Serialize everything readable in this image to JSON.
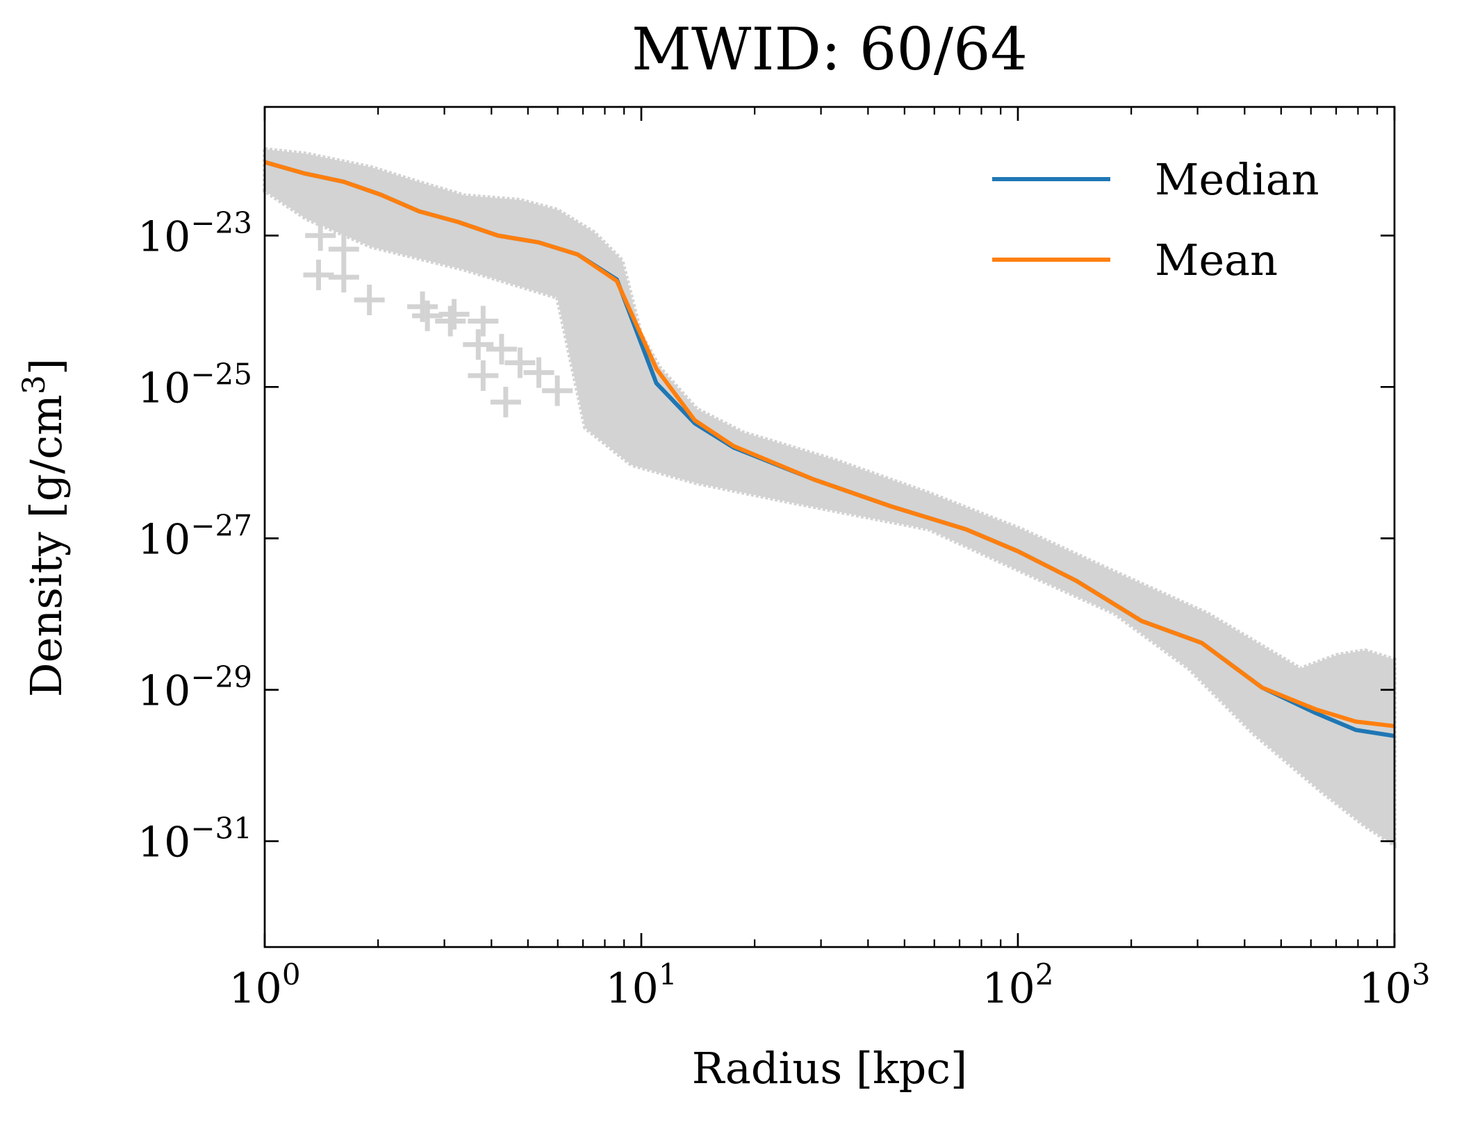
{
  "chart_data": {
    "type": "line",
    "title": "MWID: 60/64",
    "xlabel": "Radius [kpc]",
    "ylabel": "Density [g/cm^3]",
    "ylabel_parts": {
      "text": "Density [g/cm",
      "sup": "3",
      "close": "]"
    },
    "xscale": "log",
    "yscale": "log",
    "xlim": [
      1,
      1000
    ],
    "ylim": [
      4e-33,
      5e-22
    ],
    "grid": false,
    "legend": "top-right",
    "x_ticks": [
      {
        "base": "10",
        "exp": "0",
        "value": 1
      },
      {
        "base": "10",
        "exp": "1",
        "value": 10
      },
      {
        "base": "10",
        "exp": "2",
        "value": 100
      },
      {
        "base": "10",
        "exp": "3",
        "value": 1000
      }
    ],
    "y_ticks": [
      {
        "base": "10",
        "exp": "−23",
        "value": 1e-23
      },
      {
        "base": "10",
        "exp": "−25",
        "value": 1e-25
      },
      {
        "base": "10",
        "exp": "−27",
        "value": 1e-27
      },
      {
        "base": "10",
        "exp": "−29",
        "value": 1e-29
      },
      {
        "base": "10",
        "exp": "−31",
        "value": 1e-31
      }
    ],
    "series": [
      {
        "name": "Median",
        "color": "#1f77b4",
        "log10_x": [
          0,
          0.106,
          0.21,
          0.308,
          0.41,
          0.513,
          0.619,
          0.727,
          0.831,
          0.935,
          1.04,
          1.142,
          1.245,
          1.457,
          1.665,
          1.862,
          2.0,
          2.155,
          2.328,
          2.488,
          2.648,
          2.792,
          2.897,
          3.0
        ],
        "log10_y": [
          -22.03,
          -22.18,
          -22.29,
          -22.46,
          -22.68,
          -22.82,
          -23.0,
          -23.09,
          -23.25,
          -23.58,
          -24.95,
          -25.48,
          -25.8,
          -26.22,
          -26.58,
          -26.88,
          -27.17,
          -27.56,
          -28.09,
          -28.38,
          -28.97,
          -29.31,
          -29.53,
          -29.61
        ]
      },
      {
        "name": "Mean",
        "color": "#ff7f0e",
        "log10_x": [
          0,
          0.106,
          0.21,
          0.308,
          0.41,
          0.513,
          0.619,
          0.727,
          0.831,
          0.935,
          1.04,
          1.142,
          1.245,
          1.457,
          1.665,
          1.862,
          2.0,
          2.155,
          2.328,
          2.488,
          2.648,
          2.792,
          2.897,
          3.0
        ],
        "log10_y": [
          -22.03,
          -22.18,
          -22.29,
          -22.46,
          -22.68,
          -22.82,
          -23.0,
          -23.09,
          -23.25,
          -23.6,
          -24.76,
          -25.44,
          -25.78,
          -26.22,
          -26.58,
          -26.88,
          -27.17,
          -27.56,
          -28.09,
          -28.38,
          -28.97,
          -29.26,
          -29.42,
          -29.48
        ]
      }
    ],
    "individual_profiles_band": {
      "color": "#d3d3d3",
      "upper": {
        "log10_x": [
          0,
          0.111,
          0.284,
          0.407,
          0.53,
          0.678,
          0.777,
          0.875,
          0.949,
          0.999,
          1.048,
          1.147,
          1.27,
          1.517,
          1.763,
          2.01,
          2.256,
          2.503,
          2.75,
          2.848,
          2.922,
          3.0
        ],
        "log10_y": [
          -21.86,
          -21.92,
          -22.1,
          -22.29,
          -22.47,
          -22.53,
          -22.66,
          -22.96,
          -23.33,
          -24.3,
          -24.74,
          -25.29,
          -25.6,
          -25.97,
          -26.4,
          -26.88,
          -27.44,
          -27.99,
          -28.72,
          -28.54,
          -28.48,
          -28.6
        ]
      },
      "lower": {
        "log10_x": [
          0,
          0.111,
          0.284,
          0.53,
          0.777,
          0.851,
          0.974,
          1.147,
          1.393,
          1.763,
          2.01,
          2.256,
          2.454,
          2.626,
          2.8,
          2.922,
          3.0
        ],
        "log10_y": [
          -22.41,
          -22.78,
          -23.15,
          -23.45,
          -23.82,
          -25.54,
          -26.03,
          -26.27,
          -26.52,
          -26.88,
          -27.44,
          -27.99,
          -28.72,
          -29.58,
          -30.32,
          -30.8,
          -31.05
        ]
      }
    },
    "outlier_points": {
      "marker": "plus",
      "color": "#d3d3d3",
      "log10_x": [
        0.148,
        0.21,
        0.143,
        0.21,
        0.278,
        0.419,
        0.503,
        0.357,
        0.432,
        0.493,
        0.58,
        0.629,
        0.678,
        0.728,
        0.777,
        0.567,
        0.64,
        0.58
      ],
      "log10_y": [
        -23.0,
        -23.18,
        -23.52,
        -23.55,
        -23.85,
        -23.94,
        -24.04,
        -22.93,
        -24.06,
        -24.13,
        -24.13,
        -24.5,
        -24.68,
        -24.81,
        -25.05,
        -24.44,
        -25.2,
        -24.85
      ]
    }
  }
}
